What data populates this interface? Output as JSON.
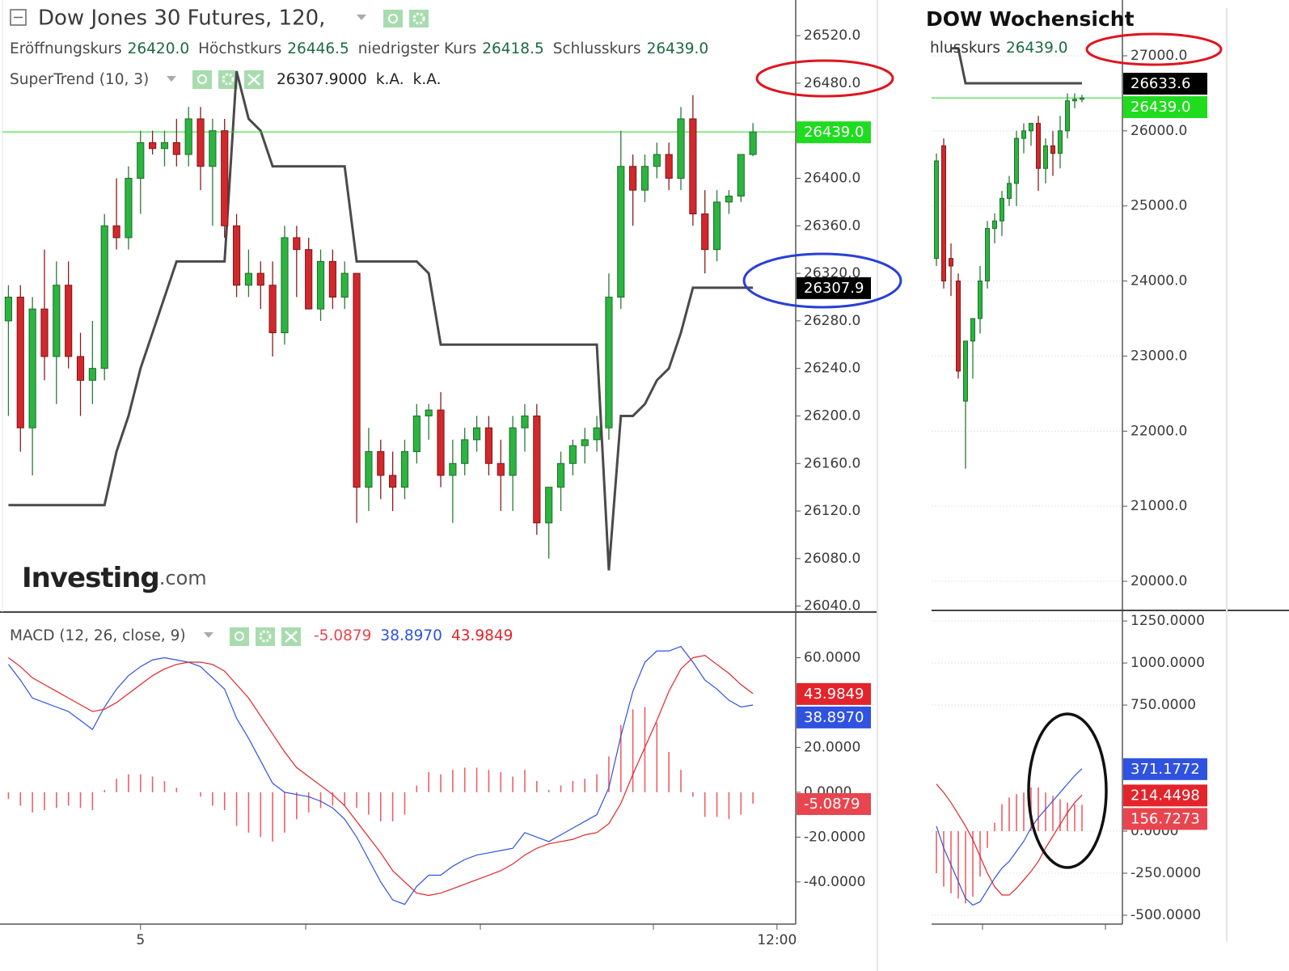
{
  "chart_data": [
    {
      "type": "candlestick",
      "title": "Dow Jones 30 Futures, 120,",
      "ohlc_labels": [
        "Eröffnungskurs",
        "Höchstkurs",
        "niedrigster Kurs",
        "Schlusskurs"
      ],
      "ohlc_readout": [
        "26420.0",
        "26446.5",
        "26418.5",
        "26439.0"
      ],
      "open": [
        26280,
        26300,
        26190,
        26290,
        26250,
        26310,
        26250,
        26230,
        26240,
        26360,
        26350,
        26400,
        26430,
        26425,
        26430,
        26420,
        26450,
        26410,
        26440,
        26360,
        26310,
        26320,
        26310,
        26270,
        26350,
        26340,
        26290,
        26330,
        26300,
        26320,
        26140,
        26170,
        26150,
        26140,
        26170,
        26200,
        26205,
        26150,
        26160,
        26180,
        26190,
        26160,
        26150,
        26190,
        26200,
        26110,
        26140,
        26160,
        26175,
        26180,
        26190,
        26300,
        26410,
        26390,
        26410,
        26420,
        26400,
        26450,
        26370,
        26340,
        26380,
        26385,
        26420
      ],
      "high": [
        26310,
        26310,
        26300,
        26340,
        26330,
        26330,
        26270,
        26280,
        26370,
        26400,
        26410,
        26440,
        26440,
        26440,
        26450,
        26460,
        26460,
        26450,
        26450,
        26370,
        26340,
        26330,
        26330,
        26360,
        26360,
        26350,
        26340,
        26340,
        26330,
        26320,
        26190,
        26180,
        26170,
        26180,
        26210,
        26210,
        26220,
        26180,
        26190,
        26200,
        26200,
        26180,
        26200,
        26210,
        26210,
        26140,
        26170,
        26180,
        26190,
        26200,
        26320,
        26440,
        26420,
        26420,
        26430,
        26430,
        26460,
        26470,
        26390,
        26390,
        26390,
        26420,
        26446.5
      ],
      "low": [
        26200,
        26170,
        26150,
        26230,
        26210,
        26240,
        26200,
        26210,
        26230,
        26340,
        26340,
        26370,
        26420,
        26410,
        26410,
        26410,
        26390,
        26360,
        26350,
        26300,
        26300,
        26290,
        26250,
        26260,
        26300,
        26290,
        26280,
        26290,
        26290,
        26110,
        26120,
        26130,
        26120,
        26130,
        26160,
        26180,
        26140,
        26110,
        26150,
        26170,
        26150,
        26120,
        26120,
        26170,
        26100,
        26080,
        26120,
        26150,
        26160,
        26170,
        26180,
        26290,
        26360,
        26380,
        26400,
        26390,
        26390,
        26360,
        26320,
        26330,
        26370,
        26380,
        26418.5
      ],
      "close": [
        26300,
        26190,
        26290,
        26250,
        26310,
        26250,
        26230,
        26240,
        26360,
        26350,
        26400,
        26430,
        26425,
        26430,
        26420,
        26450,
        26410,
        26440,
        26360,
        26310,
        26320,
        26310,
        26270,
        26350,
        26340,
        26290,
        26330,
        26300,
        26320,
        26140,
        26170,
        26150,
        26140,
        26170,
        26200,
        26205,
        26150,
        26160,
        26180,
        26190,
        26160,
        26150,
        26190,
        26200,
        26110,
        26140,
        26160,
        26175,
        26180,
        26190,
        26300,
        26410,
        26390,
        26410,
        26420,
        26400,
        26450,
        26370,
        26340,
        26380,
        26385,
        26420,
        26439
      ],
      "up_color": "#2bb53f",
      "down_color": "#d3282b",
      "price_line_color": "#1fdc1f",
      "supertrend": {
        "name": "SuperTrend (10, 3)",
        "color": "#4a4a4a",
        "readout": "26307.9000",
        "readout_extra": [
          "k.A.",
          "k.A."
        ],
        "last_label": "26307.9",
        "values": [
          26125,
          26125,
          26125,
          26125,
          26125,
          26125,
          26125,
          26125,
          26125,
          26170,
          26200,
          26240,
          26270,
          26300,
          26330,
          26330,
          26330,
          26330,
          26330,
          26490,
          26450,
          26440,
          26410,
          26410,
          26410,
          26410,
          26410,
          26410,
          26410,
          26330,
          26330,
          26330,
          26330,
          26330,
          26330,
          26320,
          26260,
          26260,
          26260,
          26260,
          26260,
          26260,
          26260,
          26260,
          26260,
          26260,
          26260,
          26260,
          26260,
          26260,
          26070,
          26200,
          26200,
          26210,
          26230,
          26240,
          26270,
          26307.9,
          26307.9,
          26307.9,
          26307.9,
          26307.9,
          26307.9
        ]
      },
      "ylim": [
        26035,
        26550
      ],
      "yticks": [
        {
          "value": 26040,
          "label": "26040.0"
        },
        {
          "value": 26080,
          "label": "26080.0"
        },
        {
          "value": 26120,
          "label": "26120.0"
        },
        {
          "value": 26160,
          "label": "26160.0"
        },
        {
          "value": 26200,
          "label": "26200.0"
        },
        {
          "value": 26240,
          "label": "26240.0"
        },
        {
          "value": 26280,
          "label": "26280.0"
        },
        {
          "value": 26320,
          "label": "26320.0"
        },
        {
          "value": 26360,
          "label": "26360.0"
        },
        {
          "value": 26400,
          "label": "26400.0"
        },
        {
          "value": 26440,
          "label": "26440.0"
        },
        {
          "value": 26480,
          "label": "26480.0"
        },
        {
          "value": 26520,
          "label": "26520.0"
        }
      ],
      "grid": false,
      "watermark": [
        "Investing",
        ".com"
      ]
    },
    {
      "type": "macd",
      "title": "MACD (12, 26, close, 9)",
      "categories": [
        null,
        null,
        null,
        null,
        null,
        null,
        null,
        null,
        null,
        null,
        null,
        "5",
        null,
        null,
        null,
        null,
        null,
        null,
        null,
        null,
        null,
        null,
        null,
        null,
        null,
        null,
        null,
        null,
        null,
        null,
        null,
        null,
        null,
        null,
        null,
        null,
        null,
        null,
        null,
        null,
        null,
        null,
        null,
        null,
        null,
        null,
        null,
        null,
        null,
        null,
        null,
        null,
        null,
        null,
        null,
        null,
        null,
        null,
        null,
        null,
        null,
        null,
        null,
        null,
        "12:00",
        null
      ],
      "series": [
        {
          "style": "bar",
          "color": "#e8454f",
          "last_label": "-5.0879",
          "values": [
            -3,
            -6,
            -9,
            -8,
            -7,
            -6,
            -7,
            -8,
            1,
            6,
            8,
            8,
            7,
            5,
            2,
            0,
            -2,
            -6,
            -8,
            -15,
            -18,
            -20,
            -22,
            -18,
            -12,
            -9,
            -7,
            -6,
            -6,
            -7,
            -10,
            -13,
            -13,
            -10,
            3,
            9,
            8,
            10,
            11,
            11,
            10,
            9,
            7,
            10,
            5,
            1,
            3,
            5,
            6,
            8,
            16,
            30,
            37,
            38,
            31,
            18,
            10,
            -2,
            -11,
            -11,
            -12,
            -10,
            -5.0879,
            null,
            null,
            null
          ]
        },
        {
          "style": "line",
          "color": "#2f52e0",
          "last_label": "38.8970",
          "values": [
            57,
            50,
            42,
            40,
            38,
            36,
            32,
            28,
            38,
            46,
            52,
            56,
            59,
            60,
            59,
            58,
            56,
            51,
            46,
            33,
            24,
            14,
            4,
            0,
            -1,
            -2,
            -4,
            -7,
            -12,
            -20,
            -30,
            -40,
            -48,
            -50,
            -42,
            -37,
            -37,
            -33,
            -30,
            -28,
            -27,
            -26,
            -25,
            -18,
            -20,
            -22,
            -19,
            -16,
            -13,
            -10,
            2,
            25,
            45,
            58,
            63,
            63,
            65,
            58,
            50,
            46,
            41,
            38,
            38.897,
            null,
            null,
            null
          ]
        },
        {
          "style": "line",
          "color": "#e3242b",
          "last_label": "43.9849",
          "values": [
            60,
            56,
            51,
            48,
            45,
            42,
            39,
            36,
            37,
            40,
            44,
            48,
            52,
            55,
            57,
            58,
            58,
            57,
            54,
            48,
            42,
            34,
            26,
            18,
            11,
            7,
            3,
            -1,
            -6,
            -13,
            -20,
            -27,
            -35,
            -40,
            -45,
            -46,
            -45,
            -43,
            -41,
            -39,
            -37,
            -35,
            -32,
            -28,
            -25,
            -23,
            -22,
            -21,
            -19,
            -18,
            -14,
            -5,
            8,
            20,
            32,
            45,
            55,
            60,
            61,
            57,
            53,
            48,
            43.9849,
            null,
            null,
            null
          ]
        }
      ],
      "ylim": [
        -58.8,
        80
      ],
      "yticks": [
        {
          "value": -40,
          "label": "-40.0000"
        },
        {
          "value": -20,
          "label": "-20.0000"
        },
        {
          "value": 0,
          "label": "0.0000"
        },
        {
          "value": 20,
          "label": "20.0000"
        },
        {
          "value": 60,
          "label": "60.0000"
        }
      ],
      "grid": false
    },
    {
      "type": "candlestick",
      "title": "DOW Wochensicht",
      "ohlc_labels": [
        "hlusskurs"
      ],
      "ohlc_readout": [
        "26439.0"
      ],
      "open": [
        24300,
        25800,
        24300,
        24000,
        22400,
        23200,
        23500,
        24000,
        24700,
        24800,
        25100,
        25300,
        25900,
        26000,
        26100,
        25500,
        25800,
        25700,
        26000,
        26400,
        26420
      ],
      "high": [
        25700,
        25900,
        24500,
        24100,
        23200,
        23500,
        24200,
        24800,
        24900,
        25200,
        25400,
        26000,
        26100,
        26100,
        26200,
        25900,
        26000,
        26200,
        26500,
        26500,
        26480
      ],
      "low": [
        24200,
        23900,
        23800,
        22700,
        21500,
        22700,
        23300,
        23900,
        24500,
        24600,
        25000,
        25000,
        25700,
        25800,
        25200,
        25300,
        25400,
        25500,
        25900,
        26300,
        26380
      ],
      "close": [
        25600,
        24000,
        24200,
        22800,
        23200,
        23500,
        24000,
        24700,
        24800,
        25100,
        25300,
        25900,
        26000,
        26100,
        25500,
        25800,
        25700,
        26000,
        26400,
        26420,
        26439
      ],
      "up_color": "#2bb53f",
      "down_color": "#d3282b",
      "price_line_color": "#1fdc1f",
      "supertrend": {
        "color": "#4a4a4a",
        "last_label": "26633.6",
        "values": [
          null,
          null,
          27100,
          27100,
          26633.6,
          26633.6,
          26633.6,
          26633.6,
          26633.6,
          26633.6,
          26633.6,
          26633.6,
          26633.6,
          26633.6,
          26633.6,
          26633.6,
          26633.6,
          26633.6,
          26633.6,
          26633.6,
          26633.6
        ]
      },
      "ylim": [
        19612,
        27743
      ],
      "yticks": [
        {
          "value": 20000,
          "label": "20000.0"
        },
        {
          "value": 21000,
          "label": "21000.0"
        },
        {
          "value": 22000,
          "label": "22000.0"
        },
        {
          "value": 23000,
          "label": "23000.0"
        },
        {
          "value": 24000,
          "label": "24000.0"
        },
        {
          "value": 25000,
          "label": "25000.0"
        },
        {
          "value": 26000,
          "label": "26000.0"
        },
        {
          "value": 27000,
          "label": "27000.0"
        }
      ],
      "grid": true
    },
    {
      "type": "macd",
      "series": [
        {
          "style": "bar",
          "color": "#e8454f",
          "last_label": "156.7273",
          "values": [
            -250,
            -330,
            -370,
            -400,
            -430,
            -390,
            -270,
            -100,
            50,
            160,
            200,
            220,
            230,
            260,
            260,
            230,
            210,
            190,
            170,
            160,
            156.7273
          ]
        },
        {
          "style": "line",
          "color": "#2f52e0",
          "last_label": "371.1772",
          "values": [
            30,
            -100,
            -200,
            -300,
            -400,
            -440,
            -420,
            -350,
            -280,
            -220,
            -180,
            -120,
            -60,
            20,
            80,
            130,
            180,
            230,
            280,
            330,
            371.1772
          ]
        },
        {
          "style": "line",
          "color": "#e3242b",
          "last_label": "214.4498",
          "values": [
            280,
            230,
            170,
            100,
            30,
            -50,
            -150,
            -250,
            -330,
            -380,
            -380,
            -340,
            -290,
            -240,
            -180,
            -100,
            -30,
            40,
            110,
            170,
            214.4498
          ]
        }
      ],
      "ylim": [
        -553,
        1313
      ],
      "yticks": [
        {
          "value": -500,
          "label": "-500.0000"
        },
        {
          "value": -250,
          "label": "-250.0000"
        },
        {
          "value": 0,
          "label": "0.0000"
        },
        {
          "value": 750,
          "label": "750.0000"
        },
        {
          "value": 1000,
          "label": "1000.0000"
        },
        {
          "value": 1250,
          "label": "1250.0000"
        }
      ],
      "grid": true
    }
  ]
}
